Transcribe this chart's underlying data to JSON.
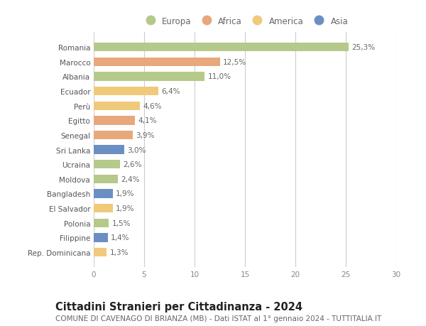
{
  "countries": [
    "Rep. Dominicana",
    "Filippine",
    "Polonia",
    "El Salvador",
    "Bangladesh",
    "Moldova",
    "Ucraina",
    "Sri Lanka",
    "Senegal",
    "Egitto",
    "Perù",
    "Ecuador",
    "Albania",
    "Marocco",
    "Romania"
  ],
  "values": [
    1.3,
    1.4,
    1.5,
    1.9,
    1.9,
    2.4,
    2.6,
    3.0,
    3.9,
    4.1,
    4.6,
    6.4,
    11.0,
    12.5,
    25.3
  ],
  "labels": [
    "1,3%",
    "1,4%",
    "1,5%",
    "1,9%",
    "1,9%",
    "2,4%",
    "2,6%",
    "3,0%",
    "3,9%",
    "4,1%",
    "4,6%",
    "6,4%",
    "11,0%",
    "12,5%",
    "25,3%"
  ],
  "colors": [
    "#f0c97a",
    "#6b8fc2",
    "#b5c98a",
    "#f0c97a",
    "#6b8fc2",
    "#b5c98a",
    "#b5c98a",
    "#6b8fc2",
    "#e8a87c",
    "#e8a87c",
    "#f0c97a",
    "#f0c97a",
    "#b5c98a",
    "#e8a87c",
    "#b5c98a"
  ],
  "legend": {
    "Europa": "#b5c98a",
    "Africa": "#e8a87c",
    "America": "#f0c97a",
    "Asia": "#6b8fc2"
  },
  "title": "Cittadini Stranieri per Cittadinanza - 2024",
  "subtitle": "COMUNE DI CAVENAGO DI BRIANZA (MB) - Dati ISTAT al 1° gennaio 2024 - TUTTITALIA.IT",
  "xlim": [
    0,
    30
  ],
  "xticks": [
    0,
    5,
    10,
    15,
    20,
    25,
    30
  ],
  "background_color": "#ffffff",
  "grid_color": "#cccccc",
  "bar_height": 0.6,
  "title_fontsize": 10.5,
  "subtitle_fontsize": 7.5,
  "label_fontsize": 7.5,
  "tick_fontsize": 7.5,
  "legend_fontsize": 8.5
}
